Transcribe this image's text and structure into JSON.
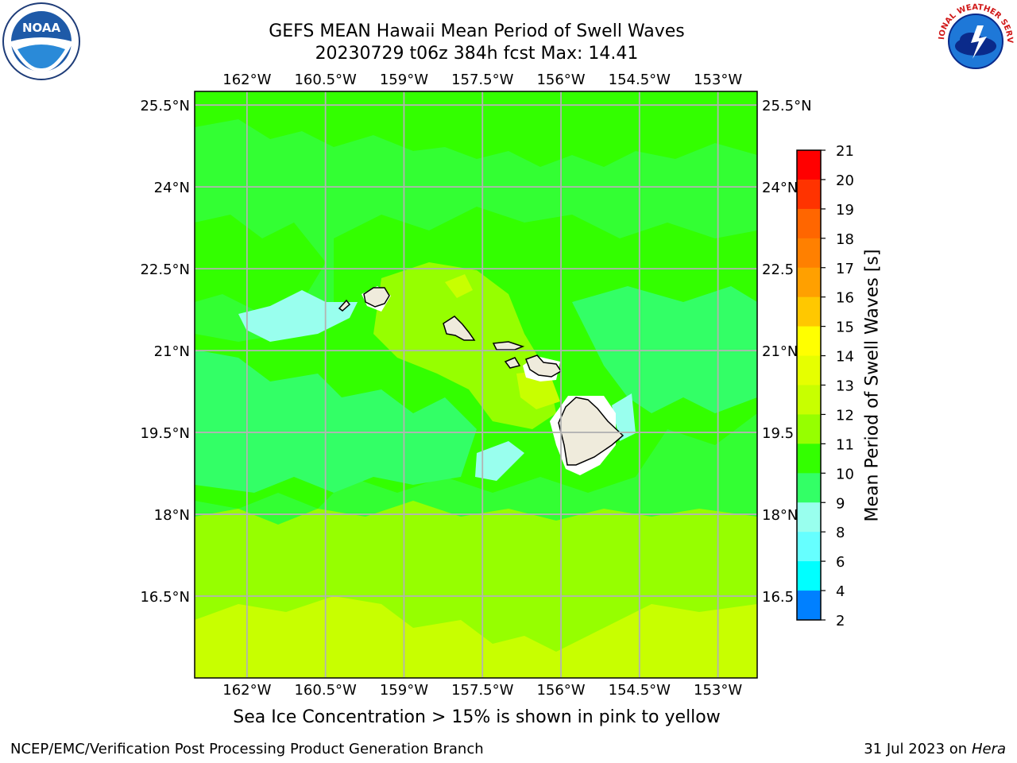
{
  "title": {
    "line1": "GEFS MEAN Hawaii Mean Period of Swell Waves",
    "line2": "20230729 t06z 384h fcst   Max: 14.41"
  },
  "map": {
    "lon_ticks": [
      "162°W",
      "160.5°W",
      "159°W",
      "157.5°W",
      "156°W",
      "154.5°W",
      "153°W"
    ],
    "lat_ticks": [
      "25.5°N",
      "24°N",
      "22.5°N",
      "21°N",
      "19.5°N",
      "18°N",
      "16.5°N"
    ],
    "lat_ticks_right": [
      "25.5°N",
      "24°N",
      "22.5",
      "21°N",
      "19.5",
      "18°N",
      "16.5"
    ],
    "lon_range": [
      -163,
      -152.25
    ],
    "lat_range": [
      15,
      25.75
    ],
    "grid": true,
    "land_color": "#efebdc"
  },
  "colorbar": {
    "title": "Mean Period of Swell Waves [s]",
    "ticks": [
      "21",
      "20",
      "19",
      "18",
      "17",
      "16",
      "15",
      "14",
      "13",
      "12",
      "11",
      "10",
      "9",
      "8",
      "6",
      "4",
      "2"
    ],
    "colors": [
      "#ff0000",
      "#ff3300",
      "#ff6600",
      "#ff8000",
      "#ffa000",
      "#ffc800",
      "#ffff00",
      "#e6ff00",
      "#c8ff00",
      "#96ff00",
      "#33ff00",
      "#33ff66",
      "#99ffee",
      "#66ffff",
      "#00ffff",
      "#0080ff",
      "#0000ff"
    ]
  },
  "footer": {
    "note": "Sea Ice Concentration > 15% is shown in pink to yellow",
    "left": "NCEP/EMC/Verification Post Processing Product Generation Branch",
    "right_prefix": "31 Jul 2023 on ",
    "right_host": "Hera"
  },
  "logos": {
    "noaa_text": "NOAA",
    "nws_text": "NATIONAL WEATHER SERVICE"
  }
}
